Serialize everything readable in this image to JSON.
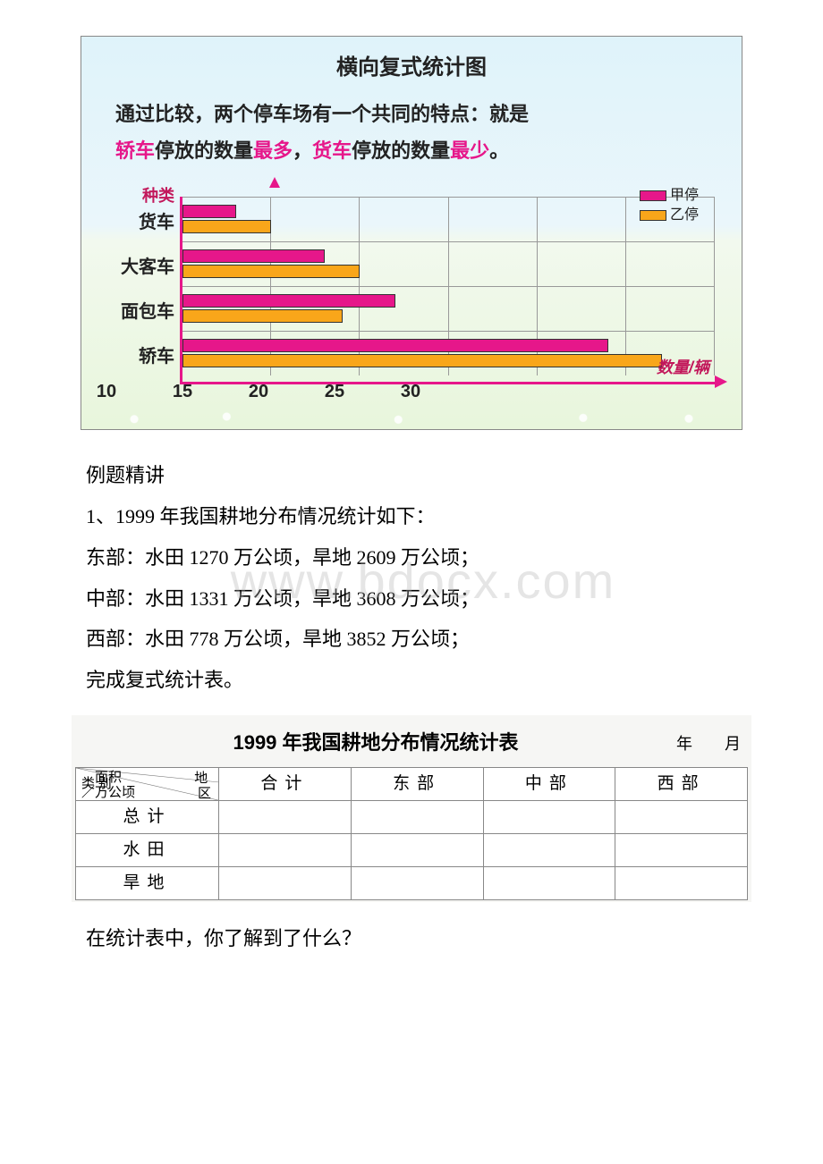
{
  "chart1": {
    "type": "bar-horizontal-grouped",
    "title": "横向复式统计图",
    "subtitle_prefix": "通过比较，两个停车场有一个共同的特点：就是",
    "subtitle_line2_a": "轿车",
    "subtitle_line2_b": "停放的数量",
    "subtitle_line2_c": "最多",
    "subtitle_line2_d": "，",
    "subtitle_line2_e": "货车",
    "subtitle_line2_f": "停放的数量",
    "subtitle_line2_g": "最少",
    "subtitle_line2_h": "。",
    "y_axis_label": "种类",
    "x_axis_label": "数量/辆",
    "categories": [
      "货车",
      "大客车",
      "面包车",
      "轿车"
    ],
    "series_a_name": "甲停",
    "series_b_name": "乙停",
    "series_a_color": "#e6178a",
    "series_b_color": "#f9a61a",
    "series_a_values": [
      3,
      8,
      12,
      24
    ],
    "series_b_values": [
      5,
      10,
      9,
      27
    ],
    "x_ticks": [
      "0",
      "5",
      "10",
      "15",
      "20",
      "25",
      "30"
    ],
    "xmax": 30,
    "background_top": "#dff3fa",
    "background_bottom": "#e8f6dc",
    "axis_color": "#e6178a",
    "grid_color": "#999999"
  },
  "section_header": "例题精讲",
  "q1_num": "1、1999 年我国耕地分布情况统计如下：",
  "q1_east": "东部：水田 1270 万公顷，旱地 2609 万公顷；",
  "q1_mid": "中部：水田 1331 万公顷，旱地 3608 万公顷；",
  "q1_west": "西部：水田 778 万公顷，旱地 3852 万公顷；",
  "q1_instr": "完成复式统计表。",
  "table2": {
    "title": "1999 年我国耕地分布情况统计表",
    "date_labels": "年　　月",
    "corner_top1": "面积",
    "corner_top2": "／万公顷",
    "corner_right1": "地",
    "corner_right2": "区",
    "corner_bottom": "类 别",
    "columns": [
      "合计",
      "东部",
      "中部",
      "西部"
    ],
    "rows": [
      "总计",
      "水田",
      "旱地"
    ]
  },
  "q1_followup": "在统计表中，你了解到了什么？",
  "watermark": "www.bdocx.com"
}
